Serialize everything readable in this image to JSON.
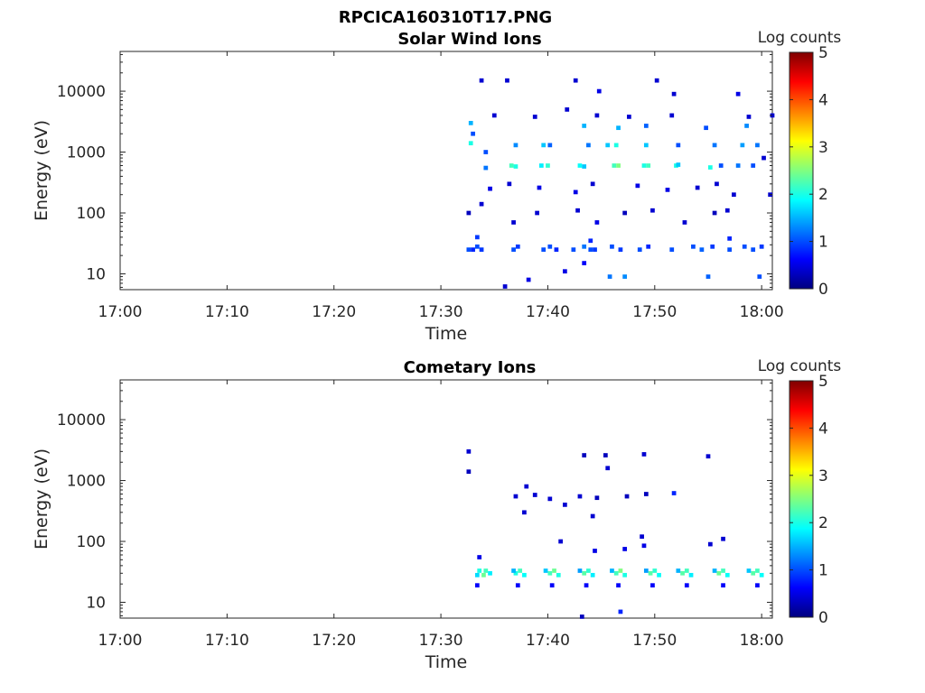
{
  "figure_title": "RPCICA160310T17.PNG",
  "colorbar": {
    "label": "Log counts",
    "ticks": [
      "0",
      "1",
      "2",
      "3",
      "4",
      "5"
    ],
    "range": [
      0,
      5
    ],
    "colormap": "jet"
  },
  "chart_data": [
    {
      "type": "heatmap",
      "title": "Solar Wind Ions",
      "xlabel": "Time",
      "ylabel": "Energy (eV)",
      "x_tick_labels": [
        "17:00",
        "17:10",
        "17:20",
        "17:30",
        "17:40",
        "17:50",
        "18:00"
      ],
      "y_tick_labels": [
        "10",
        "100",
        "1000",
        "10000"
      ],
      "xlim_minutes_after_1700": [
        0,
        61
      ],
      "y_scale": "log",
      "ylim": [
        5.5,
        45000
      ],
      "z_label": "Log counts",
      "z_range": [
        0,
        5
      ],
      "cells": [
        [
          32.6,
          25,
          1.0
        ],
        [
          33.0,
          25,
          0.8
        ],
        [
          33.4,
          28,
          1.0
        ],
        [
          33.8,
          25,
          0.9
        ],
        [
          36.8,
          25,
          1.0
        ],
        [
          37.2,
          28,
          0.9
        ],
        [
          39.6,
          25,
          1.0
        ],
        [
          40.2,
          28,
          1.0
        ],
        [
          40.8,
          25,
          0.8
        ],
        [
          42.4,
          25,
          1.0
        ],
        [
          43.4,
          28,
          1.2
        ],
        [
          44.0,
          25,
          1.0
        ],
        [
          44.4,
          25,
          0.9
        ],
        [
          46.0,
          28,
          1.0
        ],
        [
          46.8,
          25,
          0.9
        ],
        [
          48.6,
          25,
          1.0
        ],
        [
          49.4,
          28,
          0.8
        ],
        [
          51.6,
          25,
          1.0
        ],
        [
          53.6,
          28,
          1.0
        ],
        [
          54.4,
          25,
          1.1
        ],
        [
          55.4,
          28,
          0.9
        ],
        [
          57.0,
          25,
          1.0
        ],
        [
          58.4,
          28,
          1.0
        ],
        [
          59.2,
          25,
          1.0
        ],
        [
          60.0,
          28,
          0.9
        ],
        [
          44.0,
          35,
          0.8
        ],
        [
          57.0,
          38,
          0.8
        ],
        [
          33.4,
          40,
          0.9
        ],
        [
          32.8,
          3000,
          1.5
        ],
        [
          32.8,
          1400,
          2.0
        ],
        [
          33.0,
          2000,
          1.0
        ],
        [
          34.2,
          1000,
          1.0
        ],
        [
          37.0,
          1300,
          1.3
        ],
        [
          39.6,
          1300,
          1.6
        ],
        [
          40.2,
          1300,
          1.1
        ],
        [
          43.4,
          2700,
          1.5
        ],
        [
          43.8,
          1300,
          1.2
        ],
        [
          45.6,
          1300,
          1.6
        ],
        [
          46.4,
          1300,
          2.0
        ],
        [
          46.6,
          2500,
          1.5
        ],
        [
          49.2,
          1300,
          1.6
        ],
        [
          49.2,
          2700,
          1.1
        ],
        [
          52.2,
          1300,
          1.0
        ],
        [
          54.8,
          2500,
          1.0
        ],
        [
          55.6,
          1300,
          1.2
        ],
        [
          58.2,
          1300,
          1.4
        ],
        [
          58.6,
          2700,
          1.3
        ],
        [
          59.6,
          1300,
          1.2
        ],
        [
          34.2,
          550,
          1.2
        ],
        [
          36.6,
          600,
          2.2
        ],
        [
          37.0,
          580,
          2.0
        ],
        [
          39.4,
          600,
          1.8
        ],
        [
          40.0,
          600,
          2.1
        ],
        [
          43.0,
          600,
          1.9
        ],
        [
          43.4,
          580,
          1.6
        ],
        [
          46.2,
          600,
          2.2
        ],
        [
          46.6,
          600,
          2.5
        ],
        [
          49.0,
          600,
          2.0
        ],
        [
          49.4,
          600,
          2.2
        ],
        [
          52.0,
          600,
          2.0
        ],
        [
          52.2,
          620,
          1.6
        ],
        [
          55.2,
          560,
          2.0
        ],
        [
          56.2,
          600,
          1.0
        ],
        [
          57.8,
          600,
          1.2
        ],
        [
          59.2,
          600,
          1.0
        ],
        [
          34.6,
          250,
          0.5
        ],
        [
          36.4,
          300,
          0.4
        ],
        [
          39.2,
          260,
          0.5
        ],
        [
          42.6,
          220,
          0.5
        ],
        [
          44.2,
          300,
          0.4
        ],
        [
          48.4,
          280,
          0.5
        ],
        [
          51.2,
          240,
          0.5
        ],
        [
          54.0,
          260,
          0.4
        ],
        [
          55.8,
          300,
          0.4
        ],
        [
          57.4,
          200,
          0.4
        ],
        [
          32.6,
          100,
          0.3
        ],
        [
          33.8,
          140,
          0.4
        ],
        [
          36.8,
          70,
          0.4
        ],
        [
          39.0,
          100,
          0.4
        ],
        [
          42.8,
          110,
          0.4
        ],
        [
          44.6,
          70,
          0.5
        ],
        [
          47.2,
          100,
          0.3
        ],
        [
          49.8,
          110,
          0.4
        ],
        [
          52.8,
          70,
          0.4
        ],
        [
          55.6,
          100,
          0.3
        ],
        [
          56.8,
          110,
          0.4
        ],
        [
          60.8,
          200,
          0.4
        ],
        [
          33.8,
          15000,
          0.4
        ],
        [
          36.2,
          15000,
          0.4
        ],
        [
          42.6,
          15000,
          0.4
        ],
        [
          44.8,
          10000,
          0.5
        ],
        [
          50.2,
          15000,
          0.4
        ],
        [
          51.8,
          9000,
          0.4
        ],
        [
          57.8,
          9000,
          0.5
        ],
        [
          61.0,
          4000,
          0.4
        ],
        [
          35.0,
          4000,
          0.4
        ],
        [
          38.8,
          3800,
          0.4
        ],
        [
          41.8,
          5000,
          0.4
        ],
        [
          44.6,
          4000,
          0.4
        ],
        [
          47.6,
          3800,
          0.4
        ],
        [
          51.6,
          4000,
          0.4
        ],
        [
          58.8,
          3800,
          0.4
        ],
        [
          60.2,
          800,
          0.4
        ],
        [
          38.2,
          8,
          0.5
        ],
        [
          41.6,
          11,
          0.5
        ],
        [
          45.8,
          9,
          1.2
        ],
        [
          47.2,
          9,
          1.3
        ],
        [
          55.0,
          9,
          1.1
        ],
        [
          59.8,
          9,
          1.0
        ],
        [
          36.0,
          6.2,
          0.4
        ],
        [
          43.4,
          15,
          0.6
        ]
      ]
    },
    {
      "type": "heatmap",
      "title": "Cometary Ions",
      "xlabel": "Time",
      "ylabel": "Energy (eV)",
      "x_tick_labels": [
        "17:00",
        "17:10",
        "17:20",
        "17:30",
        "17:40",
        "17:50",
        "18:00"
      ],
      "y_tick_labels": [
        "10",
        "100",
        "1000",
        "10000"
      ],
      "xlim_minutes_after_1700": [
        0,
        61
      ],
      "y_scale": "log",
      "ylim": [
        5.5,
        45000
      ],
      "z_label": "Log counts",
      "z_range": [
        0,
        5
      ],
      "cells": [
        [
          33.6,
          33,
          2.0
        ],
        [
          34.0,
          28,
          2.4
        ],
        [
          34.2,
          33,
          2.2
        ],
        [
          33.4,
          28,
          1.7
        ],
        [
          34.6,
          30,
          1.8
        ],
        [
          37.0,
          30,
          2.0
        ],
        [
          37.4,
          33,
          2.2
        ],
        [
          37.8,
          28,
          1.9
        ],
        [
          36.8,
          33,
          1.5
        ],
        [
          40.2,
          30,
          2.2
        ],
        [
          40.6,
          33,
          2.4
        ],
        [
          41.0,
          28,
          2.0
        ],
        [
          39.8,
          33,
          1.6
        ],
        [
          43.4,
          30,
          2.3
        ],
        [
          43.8,
          33,
          2.1
        ],
        [
          44.2,
          28,
          1.8
        ],
        [
          43.0,
          33,
          1.4
        ],
        [
          46.4,
          30,
          2.2
        ],
        [
          46.8,
          33,
          2.5
        ],
        [
          47.2,
          28,
          2.0
        ],
        [
          46.0,
          33,
          1.5
        ],
        [
          49.6,
          30,
          2.3
        ],
        [
          50.0,
          33,
          2.1
        ],
        [
          50.4,
          28,
          1.9
        ],
        [
          49.2,
          33,
          1.4
        ],
        [
          52.6,
          30,
          2.3
        ],
        [
          53.0,
          33,
          2.2
        ],
        [
          53.4,
          28,
          1.8
        ],
        [
          52.2,
          33,
          1.5
        ],
        [
          56.0,
          30,
          2.4
        ],
        [
          56.4,
          33,
          2.2
        ],
        [
          56.8,
          28,
          1.9
        ],
        [
          55.6,
          33,
          1.5
        ],
        [
          59.2,
          30,
          2.3
        ],
        [
          59.6,
          33,
          2.2
        ],
        [
          60.0,
          28,
          1.9
        ],
        [
          58.8,
          33,
          1.6
        ],
        [
          33.4,
          19,
          0.6
        ],
        [
          37.2,
          19,
          0.6
        ],
        [
          40.4,
          19,
          0.6
        ],
        [
          43.6,
          19,
          0.6
        ],
        [
          46.6,
          19,
          0.6
        ],
        [
          49.8,
          19,
          0.6
        ],
        [
          53.0,
          19,
          0.6
        ],
        [
          56.4,
          19,
          0.6
        ],
        [
          59.6,
          19,
          0.6
        ],
        [
          33.6,
          55,
          0.5
        ],
        [
          44.4,
          70,
          0.5
        ],
        [
          47.2,
          75,
          0.5
        ],
        [
          49.0,
          85,
          0.5
        ],
        [
          55.2,
          90,
          0.4
        ],
        [
          56.4,
          110,
          0.4
        ],
        [
          41.2,
          100,
          0.4
        ],
        [
          48.8,
          120,
          0.4
        ],
        [
          32.6,
          3000,
          0.4
        ],
        [
          32.6,
          1400,
          0.3
        ],
        [
          43.4,
          2600,
          0.3
        ],
        [
          45.6,
          1600,
          0.4
        ],
        [
          45.4,
          2600,
          0.3
        ],
        [
          49.0,
          2700,
          0.4
        ],
        [
          55.0,
          2500,
          0.4
        ],
        [
          37.0,
          550,
          0.4
        ],
        [
          38.0,
          800,
          0.4
        ],
        [
          38.8,
          580,
          0.4
        ],
        [
          40.2,
          500,
          0.4
        ],
        [
          41.6,
          400,
          0.4
        ],
        [
          43.0,
          550,
          0.4
        ],
        [
          44.6,
          520,
          0.3
        ],
        [
          47.4,
          550,
          0.3
        ],
        [
          51.8,
          620,
          0.8
        ],
        [
          49.2,
          600,
          0.3
        ],
        [
          37.8,
          300,
          0.4
        ],
        [
          44.2,
          260,
          0.4
        ],
        [
          46.8,
          7,
          0.8
        ],
        [
          43.2,
          5.8,
          0.3
        ]
      ]
    }
  ]
}
